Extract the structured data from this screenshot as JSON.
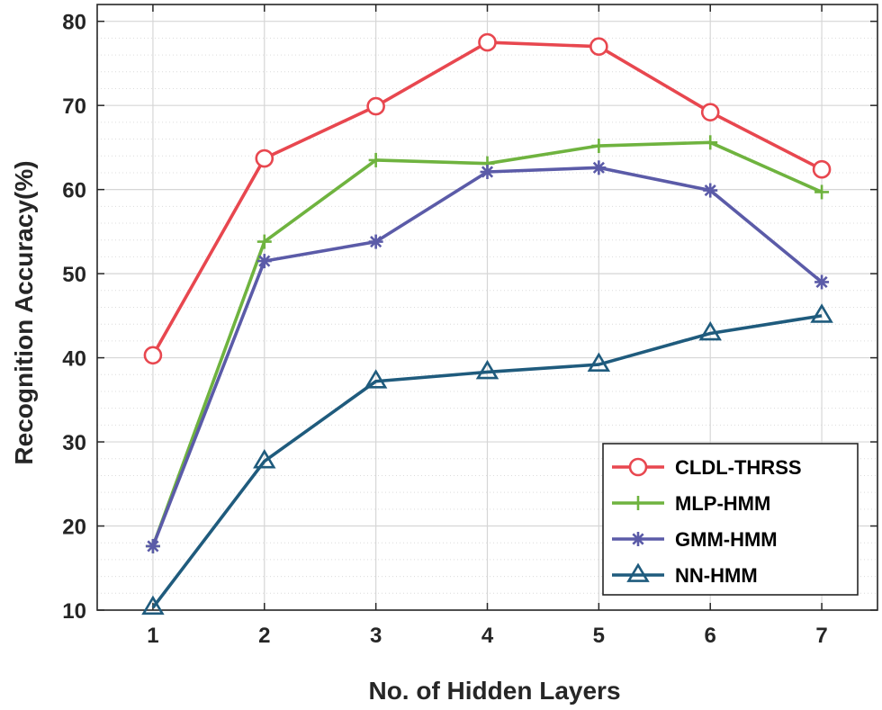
{
  "chart_data": {
    "type": "line",
    "title": "",
    "xlabel": "No. of Hidden Layers",
    "ylabel": "Recognition Accuracy(%)",
    "x": [
      1,
      2,
      3,
      4,
      5,
      6,
      7
    ],
    "xlim": [
      0.5,
      7.5
    ],
    "ylim": [
      10,
      82
    ],
    "xticks": [
      1,
      2,
      3,
      4,
      5,
      6,
      7
    ],
    "yticks": [
      10,
      20,
      30,
      40,
      50,
      60,
      70,
      80
    ],
    "y_minor_step": 2,
    "grid": true,
    "legend_position": "bottom-right",
    "series": [
      {
        "name": "CLDL-THRSS",
        "marker": "circle",
        "color": "#e8474f",
        "values": [
          40.3,
          63.7,
          69.9,
          77.5,
          77.0,
          69.2,
          62.4
        ]
      },
      {
        "name": "MLP-HMM",
        "marker": "plus",
        "color": "#6fb33f",
        "values": [
          17.6,
          53.8,
          63.5,
          63.1,
          65.2,
          65.6,
          59.7
        ]
      },
      {
        "name": "GMM-HMM",
        "marker": "asterisk",
        "color": "#5b5ba8",
        "values": [
          17.6,
          51.5,
          53.8,
          62.1,
          62.6,
          59.9,
          49.0
        ]
      },
      {
        "name": "NN-HMM",
        "marker": "triangle",
        "color": "#1f5b7d",
        "values": [
          10.3,
          27.7,
          37.2,
          38.3,
          39.2,
          42.9,
          45.0
        ]
      }
    ]
  }
}
